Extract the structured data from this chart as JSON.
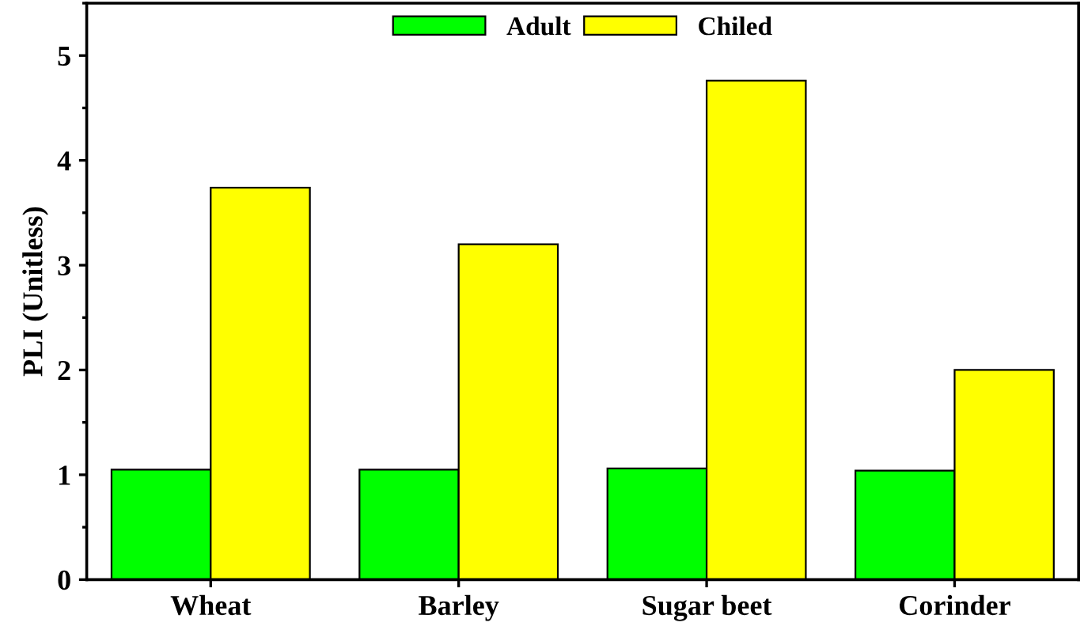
{
  "chart_data": {
    "type": "bar",
    "ylabel": "PLI (Unitless)",
    "categories": [
      "Wheat",
      "Barley",
      "Sugar beet",
      "Corinder"
    ],
    "series": [
      {
        "name": "Adult",
        "color": "#00ff00",
        "values": [
          1.05,
          1.05,
          1.06,
          1.04
        ]
      },
      {
        "name": "Chiled",
        "color": "#ffff00",
        "values": [
          3.74,
          3.2,
          4.76,
          2.0
        ]
      }
    ],
    "ylim": [
      0,
      5.5
    ],
    "yticks": [
      0,
      1,
      2,
      3,
      4,
      5
    ],
    "grid": false,
    "legend": "top"
  }
}
